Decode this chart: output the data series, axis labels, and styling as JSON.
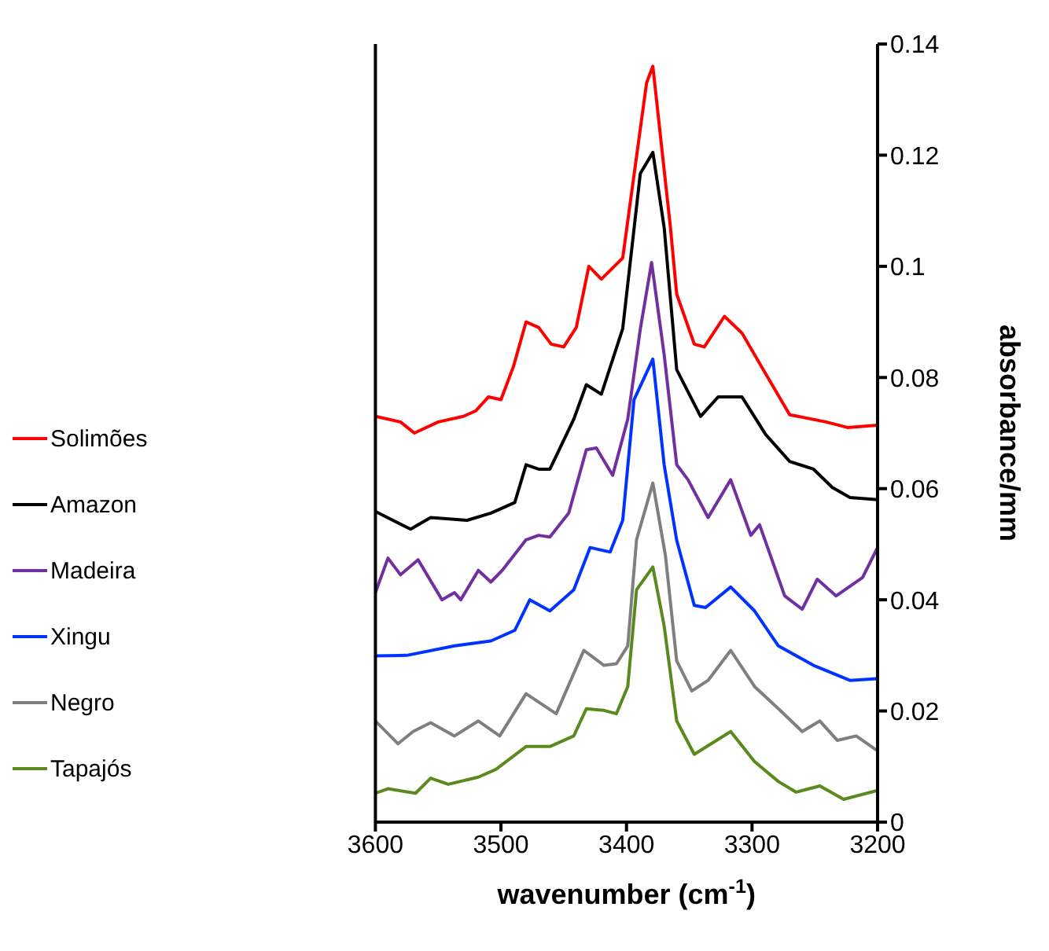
{
  "chart_data": {
    "type": "line",
    "xlabel": "wavenumber (cm$^{-1}$)",
    "ylabel": "absorbance/mm",
    "xlim": [
      3600,
      3200
    ],
    "xticks": [
      3600,
      3500,
      3400,
      3300,
      3200
    ],
    "ylim": [
      0,
      0.14
    ],
    "yticks": [
      0,
      0.02,
      0.04,
      0.06,
      0.08,
      0.1,
      0.12,
      0.14
    ],
    "grid": false,
    "legend": "left",
    "marker": "none",
    "line_style": "solid",
    "series": [
      {
        "name": "Solimões",
        "color": "#ff0000",
        "x": [
          3600,
          3580,
          3569,
          3550,
          3530,
          3520,
          3510,
          3500,
          3490,
          3480,
          3470,
          3460,
          3450,
          3440,
          3430,
          3420,
          3403,
          3384,
          3379,
          3365,
          3360,
          3346,
          3338,
          3322,
          3308,
          3289,
          3270,
          3241,
          3224,
          3200
        ],
        "values": [
          0.073,
          0.072,
          0.07,
          0.072,
          0.073,
          0.074,
          0.0765,
          0.076,
          0.082,
          0.09,
          0.089,
          0.086,
          0.0855,
          0.089,
          0.1,
          0.0977,
          0.1015,
          0.133,
          0.136,
          0.107,
          0.095,
          0.086,
          0.0855,
          0.091,
          0.088,
          0.0806,
          0.0733,
          0.072,
          0.071,
          0.0714
        ]
      },
      {
        "name": "Amazon",
        "color": "#000000",
        "x": [
          3600,
          3572,
          3556,
          3527,
          3508,
          3489,
          3480,
          3470,
          3461,
          3442,
          3432,
          3420,
          3403,
          3389,
          3379,
          3370,
          3360,
          3341,
          3327,
          3308,
          3289,
          3270,
          3251,
          3236,
          3222,
          3200
        ],
        "values": [
          0.0559,
          0.0527,
          0.0548,
          0.0543,
          0.0556,
          0.0575,
          0.0643,
          0.0635,
          0.0635,
          0.0725,
          0.0787,
          0.077,
          0.0888,
          0.1167,
          0.1205,
          0.107,
          0.0814,
          0.073,
          0.0765,
          0.0765,
          0.0697,
          0.0649,
          0.0635,
          0.0602,
          0.0584,
          0.058
        ]
      },
      {
        "name": "Madeira",
        "color": "#7030a0",
        "x": [
          3600,
          3590,
          3580,
          3566,
          3547,
          3537,
          3532,
          3518,
          3508,
          3499,
          3480,
          3470,
          3461,
          3446,
          3432,
          3424,
          3411,
          3399,
          3389,
          3380,
          3370,
          3360,
          3351,
          3335,
          3317,
          3301,
          3294,
          3274,
          3260,
          3248,
          3233,
          3212,
          3200
        ],
        "values": [
          0.0413,
          0.0475,
          0.0445,
          0.0472,
          0.04,
          0.0413,
          0.04,
          0.0453,
          0.0432,
          0.0453,
          0.0508,
          0.0516,
          0.0513,
          0.0556,
          0.067,
          0.0673,
          0.0624,
          0.0725,
          0.0887,
          0.1007,
          0.0841,
          0.0643,
          0.0616,
          0.0548,
          0.0616,
          0.0516,
          0.0535,
          0.0407,
          0.0383,
          0.0437,
          0.0407,
          0.044,
          0.0494
        ]
      },
      {
        "name": "Xingu",
        "color": "#0033ff",
        "x": [
          3600,
          3575,
          3537,
          3508,
          3489,
          3477,
          3461,
          3442,
          3429,
          3413,
          3403,
          3394,
          3379,
          3370,
          3360,
          3346,
          3337,
          3317,
          3298,
          3279,
          3251,
          3222,
          3200
        ],
        "values": [
          0.0299,
          0.03,
          0.0317,
          0.0326,
          0.0345,
          0.04,
          0.038,
          0.0418,
          0.0494,
          0.0486,
          0.0543,
          0.076,
          0.0833,
          0.0643,
          0.0507,
          0.039,
          0.0386,
          0.0423,
          0.038,
          0.0317,
          0.0282,
          0.0255,
          0.0258
        ]
      },
      {
        "name": "Negro",
        "color": "#7f7f7f",
        "x": [
          3600,
          3582,
          3570,
          3556,
          3537,
          3518,
          3501,
          3480,
          3456,
          3434,
          3418,
          3408,
          3399,
          3392,
          3379,
          3369,
          3360,
          3348,
          3335,
          3317,
          3298,
          3279,
          3260,
          3246,
          3232,
          3217,
          3200
        ],
        "values": [
          0.0182,
          0.0141,
          0.0163,
          0.0179,
          0.0155,
          0.0182,
          0.0155,
          0.0231,
          0.0195,
          0.0309,
          0.0282,
          0.0285,
          0.0317,
          0.0508,
          0.061,
          0.048,
          0.029,
          0.0236,
          0.0255,
          0.0309,
          0.0244,
          0.0204,
          0.0163,
          0.0182,
          0.0147,
          0.0155,
          0.0128
        ]
      },
      {
        "name": "Tapajós",
        "color": "#5a8a1e",
        "x": [
          3600,
          3590,
          3568,
          3556,
          3542,
          3518,
          3504,
          3480,
          3461,
          3442,
          3432,
          3418,
          3408,
          3399,
          3392,
          3379,
          3370,
          3360,
          3346,
          3317,
          3298,
          3279,
          3265,
          3246,
          3227,
          3200
        ],
        "values": [
          0.0052,
          0.006,
          0.0052,
          0.0079,
          0.0068,
          0.0081,
          0.0095,
          0.0136,
          0.0136,
          0.0155,
          0.0204,
          0.0201,
          0.0195,
          0.0244,
          0.0418,
          0.0459,
          0.0353,
          0.0182,
          0.0122,
          0.0163,
          0.0109,
          0.0073,
          0.0054,
          0.0065,
          0.0041,
          0.0057
        ]
      }
    ]
  }
}
